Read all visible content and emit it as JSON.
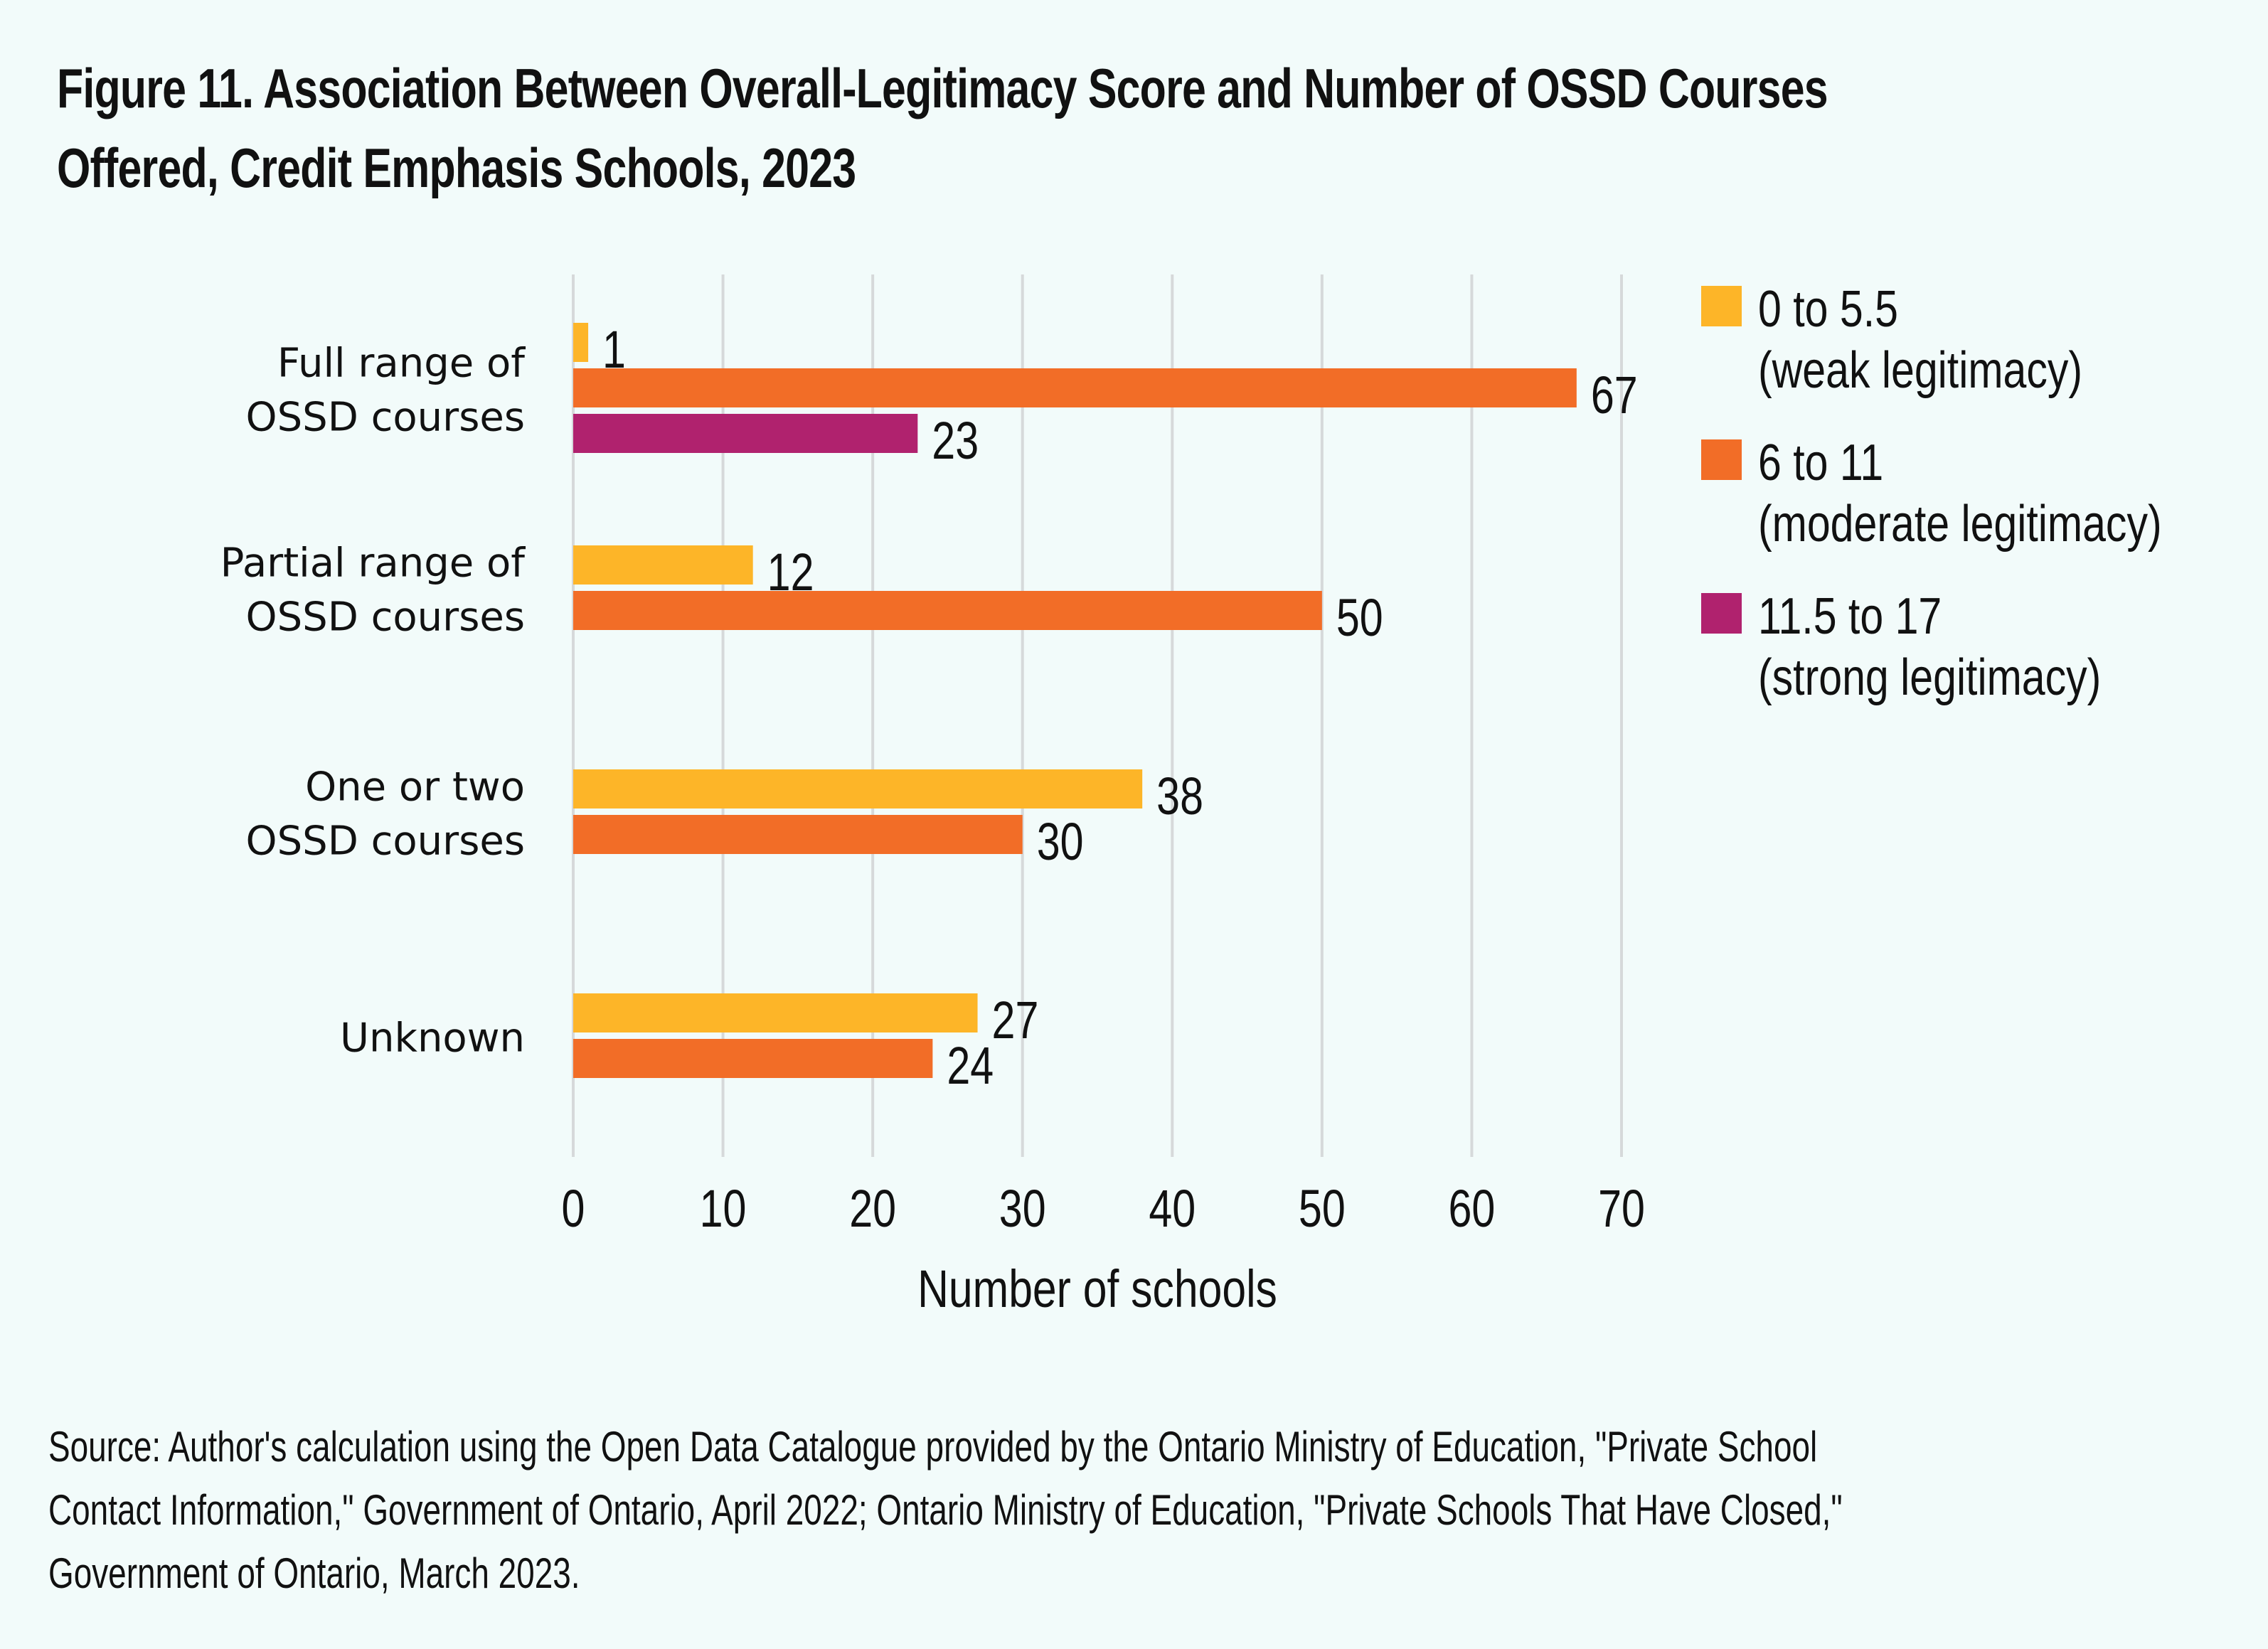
{
  "title": {
    "line1": "Figure 11. Association Between Overall-Legitimacy Score and Number of OSSD Courses",
    "line2": "Offered, Credit Emphasis Schools, 2023"
  },
  "legend": [
    {
      "line1": "0 to 5.5",
      "line2": "(weak legitimacy)",
      "color": "#FDB528"
    },
    {
      "line1": "6 to 11",
      "line2": "(moderate legitimacy)",
      "color": "#F26D27"
    },
    {
      "line1": "11.5 to 17",
      "line2": "(strong legitimacy)",
      "color": "#B0226E"
    }
  ],
  "source": {
    "line1": "Source: Author's calculation using the Open Data Catalogue provided by the Ontario Ministry of Education, \"Private School",
    "line2": "Contact Information,\" Government of Ontario, April 2022; Ontario Ministry of Education, \"Private Schools That Have Closed,\"",
    "line3": "Government of Ontario, March 2023."
  },
  "chart_data": {
    "type": "bar",
    "orientation": "horizontal",
    "title": "Figure 11. Association Between Overall-Legitimacy Score and Number of OSSD Courses Offered, Credit Emphasis Schools, 2023",
    "xlabel": "Number of schools",
    "ylabel": "",
    "xlim": [
      0,
      70
    ],
    "xticks": [
      0,
      10,
      20,
      30,
      40,
      50,
      60,
      70
    ],
    "grid": "vertical",
    "legend_position": "right",
    "categories": [
      {
        "lines": [
          "Full range of",
          "OSSD courses"
        ]
      },
      {
        "lines": [
          "Partial range of",
          "OSSD courses"
        ]
      },
      {
        "lines": [
          "One or two",
          "OSSD courses"
        ]
      },
      {
        "lines": [
          "Unknown"
        ]
      }
    ],
    "series": [
      {
        "name": "0 to 5.5 (weak legitimacy)",
        "color": "#FDB528",
        "values": [
          1,
          12,
          38,
          27
        ]
      },
      {
        "name": "6 to 11 (moderate legitimacy)",
        "color": "#F26D27",
        "values": [
          67,
          50,
          30,
          24
        ]
      },
      {
        "name": "11.5 to 17 (strong legitimacy)",
        "color": "#B0226E",
        "values": [
          23,
          null,
          null,
          null
        ]
      }
    ]
  }
}
